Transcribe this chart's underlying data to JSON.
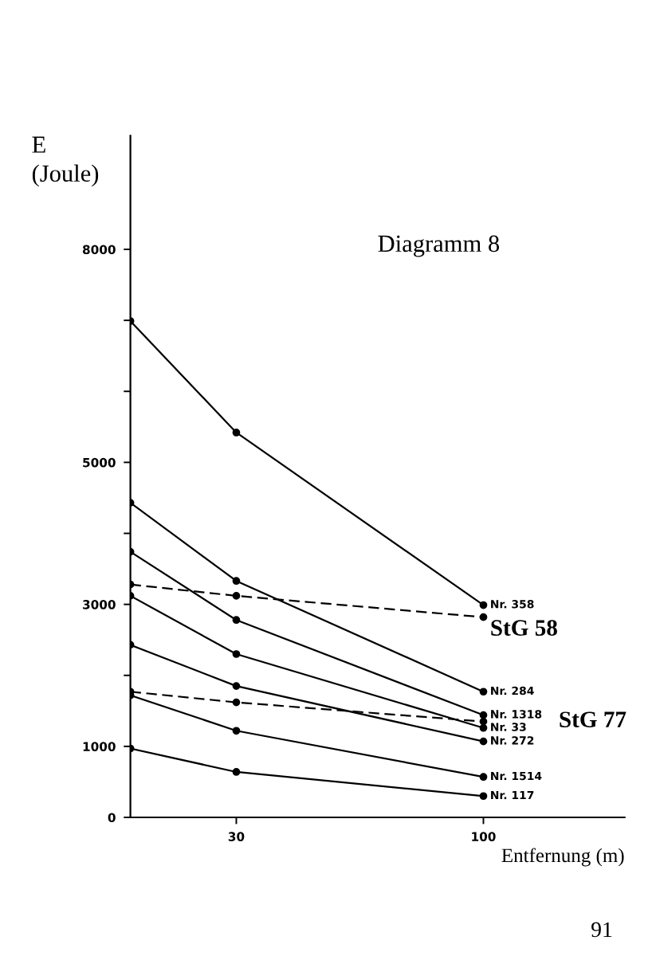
{
  "chart_data": {
    "type": "line",
    "title": "Diagramm 8",
    "xlabel": "Entfernung (m)",
    "ylabel": "E\n(Joule)",
    "x": [
      0,
      30,
      100
    ],
    "series": [
      {
        "name": "Nr. 358",
        "color": "#000000",
        "line_style": "solid",
        "values": [
          6990,
          5420,
          2990
        ]
      },
      {
        "name": "StG 58",
        "color": "#000000",
        "line_style": "dashed",
        "values": [
          3280,
          3120,
          2820
        ]
      },
      {
        "name": "Nr. 284",
        "color": "#000000",
        "line_style": "solid",
        "values": [
          4430,
          3330,
          1770
        ]
      },
      {
        "name": "Nr. 1318",
        "color": "#000000",
        "line_style": "solid",
        "values": [
          3740,
          2780,
          1440
        ]
      },
      {
        "name": "StG 77",
        "color": "#000000",
        "line_style": "dashed",
        "values": [
          1770,
          1620,
          1350
        ]
      },
      {
        "name": "Nr. 33",
        "color": "#000000",
        "line_style": "solid",
        "values": [
          3120,
          2300,
          1260
        ]
      },
      {
        "name": "Nr. 272",
        "color": "#000000",
        "line_style": "solid",
        "values": [
          2430,
          1850,
          1070
        ]
      },
      {
        "name": "Nr. 1514",
        "color": "#000000",
        "line_style": "solid",
        "values": [
          1720,
          1220,
          570
        ]
      },
      {
        "name": "Nr. 117",
        "color": "#000000",
        "line_style": "solid",
        "values": [
          970,
          640,
          300
        ]
      }
    ],
    "xlim": [
      0,
      140
    ],
    "xticks": [
      30,
      100
    ],
    "ylim": [
      0,
      9600
    ],
    "yticks": [
      0,
      1000,
      {
        "value": 2000,
        "label": null
      },
      3000,
      {
        "value": 4000,
        "label": null
      },
      5000,
      {
        "value": 6000,
        "label": null
      },
      {
        "value": 7000,
        "label": null
      },
      8000
    ],
    "marker": "circle",
    "grid": false,
    "legend": false,
    "annotations": [
      "91"
    ]
  }
}
